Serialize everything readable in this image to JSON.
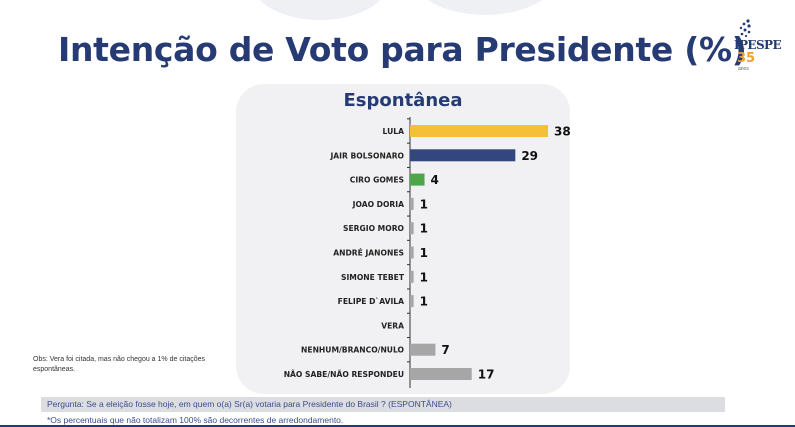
{
  "title": "Intenção de Voto para Presidente (%)",
  "logo": {
    "brand": "IPESPE",
    "years": "35",
    "years_caption": "anos"
  },
  "colors": {
    "title": "#263a73",
    "lula": "#f5bf3a",
    "bolsonaro": "#34467f",
    "ciro": "#4ea64a",
    "other": "#a6a6a6"
  },
  "chart_data": {
    "type": "bar",
    "orientation": "horizontal",
    "title": "Espontânea",
    "categories": [
      "LULA",
      "JAIR BOLSONARO",
      "CIRO GOMES",
      "JOAO DORIA",
      "SERGIO MORO",
      "ANDRÉ JANONES",
      "SIMONE TEBET",
      "FELIPE D`AVILA",
      "VERA",
      "NENHUM/BRANCO/NULO",
      "NÃO SABE/NÃO RESPONDEU"
    ],
    "values": [
      38,
      29,
      4,
      1,
      1,
      1,
      1,
      1,
      0,
      7,
      17
    ],
    "value_labels": [
      "38",
      "29",
      "4",
      "1",
      "1",
      "1",
      "1",
      "1",
      "",
      "7",
      "17"
    ],
    "bar_colors": [
      "#f5bf3a",
      "#34467f",
      "#4ea64a",
      "#a6a6a6",
      "#a6a6a6",
      "#a6a6a6",
      "#a6a6a6",
      "#a6a6a6",
      "#a6a6a6",
      "#a6a6a6",
      "#a6a6a6"
    ],
    "xlim": [
      0,
      38
    ],
    "grid": false,
    "legend": "none"
  },
  "notes": {
    "obs": "Obs: Vera foi citada, mas não chegou a 1% de citações espontâneas.",
    "question": "Pergunta:  Se a eleição fosse hoje, em quem o(a) Sr(a) votaria para  Presidente do Brasil ? (ESPONTÂNEA)",
    "footnote": "*Os percentuais que não totalizam 100% são decorrentes de arredondamento."
  }
}
